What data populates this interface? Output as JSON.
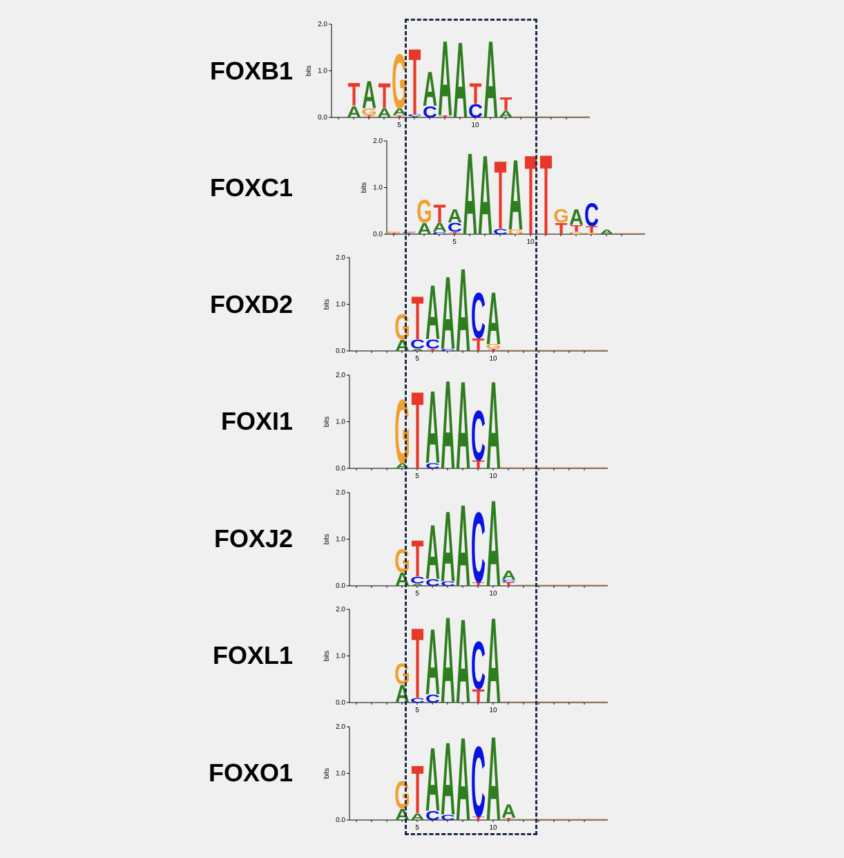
{
  "colors": {
    "A": "#2e7d1f",
    "C": "#0a14e0",
    "G": "#f0a030",
    "T": "#e8382a",
    "axis": "#000000",
    "highlight": "#1b2a44"
  },
  "axis": {
    "ylabel": "bits",
    "yticks": [
      "0.0",
      "1.0",
      "2.0"
    ],
    "xticks": [
      "5",
      "10"
    ]
  },
  "logos": [
    {
      "name": "FOXB1",
      "first_pos": 2,
      "columns": [
        {
          "pos": 2,
          "letters": [
            [
              "A",
              0.25
            ],
            [
              "T",
              0.5
            ]
          ]
        },
        {
          "pos": 3,
          "letters": [
            [
              "T",
              0.05
            ],
            [
              "G",
              0.15
            ],
            [
              "A",
              0.6
            ]
          ]
        },
        {
          "pos": 4,
          "letters": [
            [
              "A",
              0.2
            ],
            [
              "T",
              0.55
            ]
          ]
        },
        {
          "pos": 5,
          "letters": [
            [
              "T",
              0.05
            ],
            [
              "A",
              0.15
            ],
            [
              "G",
              1.2
            ]
          ]
        },
        {
          "pos": 6,
          "letters": [
            [
              "A",
              0.02
            ],
            [
              "C",
              0.05
            ],
            [
              "T",
              1.45
            ]
          ]
        },
        {
          "pos": 7,
          "letters": [
            [
              "C",
              0.25
            ],
            [
              "A",
              0.75
            ]
          ]
        },
        {
          "pos": 8,
          "letters": [
            [
              "T",
              0.05
            ],
            [
              "A",
              1.65
            ]
          ]
        },
        {
          "pos": 9,
          "letters": [
            [
              "A",
              1.67
            ]
          ]
        },
        {
          "pos": 10,
          "letters": [
            [
              "C",
              0.3
            ],
            [
              "T",
              0.45
            ]
          ]
        },
        {
          "pos": 11,
          "letters": [
            [
              "A",
              1.7
            ]
          ]
        },
        {
          "pos": 12,
          "letters": [
            [
              "A",
              0.15
            ],
            [
              "T",
              0.3
            ]
          ]
        }
      ]
    },
    {
      "name": "FOXC1",
      "first_pos": 1,
      "columns": [
        {
          "pos": 1,
          "letters": [
            [
              "T",
              0.03
            ],
            [
              "G",
              0.03
            ]
          ]
        },
        {
          "pos": 2,
          "letters": [
            [
              "T",
              0.03
            ],
            [
              "C",
              0.02
            ]
          ]
        },
        {
          "pos": 3,
          "letters": [
            [
              "A",
              0.25
            ],
            [
              "G",
              0.5
            ]
          ]
        },
        {
          "pos": 4,
          "letters": [
            [
              "C",
              0.05
            ],
            [
              "A",
              0.2
            ],
            [
              "T",
              0.4
            ]
          ]
        },
        {
          "pos": 5,
          "letters": [
            [
              "T",
              0.05
            ],
            [
              "C",
              0.2
            ],
            [
              "A",
              0.3
            ]
          ]
        },
        {
          "pos": 6,
          "letters": [
            [
              "A",
              1.8
            ]
          ]
        },
        {
          "pos": 7,
          "letters": [
            [
              "A",
              1.75
            ]
          ]
        },
        {
          "pos": 8,
          "letters": [
            [
              "C",
              0.12
            ],
            [
              "T",
              1.5
            ]
          ]
        },
        {
          "pos": 9,
          "letters": [
            [
              "G",
              0.1
            ],
            [
              "A",
              1.55
            ]
          ]
        },
        {
          "pos": 10,
          "letters": [
            [
              "T",
              1.75
            ]
          ]
        },
        {
          "pos": 11,
          "letters": [
            [
              "T",
              1.76
            ]
          ]
        },
        {
          "pos": 12,
          "letters": [
            [
              "T",
              0.25
            ],
            [
              "G",
              0.3
            ]
          ]
        },
        {
          "pos": 13,
          "letters": [
            [
              "G",
              0.05
            ],
            [
              "T",
              0.15
            ],
            [
              "A",
              0.35
            ]
          ]
        },
        {
          "pos": 14,
          "letters": [
            [
              "G",
              0.03
            ],
            [
              "T",
              0.15
            ],
            [
              "C",
              0.5
            ]
          ]
        },
        {
          "pos": 15,
          "letters": [
            [
              "A",
              0.1
            ]
          ]
        }
      ]
    },
    {
      "name": "FOXD2",
      "first_pos": 4,
      "columns": [
        {
          "pos": 4,
          "letters": [
            [
              "A",
              0.25
            ],
            [
              "G",
              0.55
            ]
          ]
        },
        {
          "pos": 5,
          "letters": [
            [
              "A",
              0.05
            ],
            [
              "C",
              0.2
            ],
            [
              "T",
              0.95
            ]
          ]
        },
        {
          "pos": 6,
          "letters": [
            [
              "T",
              0.05
            ],
            [
              "C",
              0.2
            ],
            [
              "A",
              1.2
            ]
          ]
        },
        {
          "pos": 7,
          "letters": [
            [
              "C",
              0.05
            ],
            [
              "A",
              1.6
            ]
          ]
        },
        {
          "pos": 8,
          "letters": [
            [
              "A",
              1.83
            ]
          ]
        },
        {
          "pos": 9,
          "letters": [
            [
              "T",
              0.28
            ],
            [
              "C",
              1.0
            ]
          ]
        },
        {
          "pos": 10,
          "letters": [
            [
              "T",
              0.05
            ],
            [
              "G",
              0.1
            ],
            [
              "A",
              1.15
            ]
          ]
        }
      ]
    },
    {
      "name": "FOXI1",
      "first_pos": 4,
      "columns": [
        {
          "pos": 4,
          "letters": [
            [
              "A",
              0.12
            ],
            [
              "G",
              1.4
            ]
          ]
        },
        {
          "pos": 5,
          "letters": [
            [
              "T",
              1.7
            ]
          ]
        },
        {
          "pos": 6,
          "letters": [
            [
              "C",
              0.12
            ],
            [
              "A",
              1.6
            ]
          ]
        },
        {
          "pos": 7,
          "letters": [
            [
              "A",
              1.95
            ]
          ]
        },
        {
          "pos": 8,
          "letters": [
            [
              "A",
              1.93
            ]
          ]
        },
        {
          "pos": 9,
          "letters": [
            [
              "T",
              0.18
            ],
            [
              "C",
              1.1
            ]
          ]
        },
        {
          "pos": 10,
          "letters": [
            [
              "A",
              1.93
            ]
          ]
        }
      ]
    },
    {
      "name": "FOXJ2",
      "first_pos": 4,
      "columns": [
        {
          "pos": 4,
          "letters": [
            [
              "A",
              0.3
            ],
            [
              "G",
              0.5
            ]
          ]
        },
        {
          "pos": 5,
          "letters": [
            [
              "A",
              0.05
            ],
            [
              "C",
              0.15
            ],
            [
              "T",
              0.8
            ]
          ]
        },
        {
          "pos": 6,
          "letters": [
            [
              "C",
              0.15
            ],
            [
              "A",
              1.2
            ]
          ]
        },
        {
          "pos": 7,
          "letters": [
            [
              "C",
              0.1
            ],
            [
              "A",
              1.55
            ]
          ]
        },
        {
          "pos": 8,
          "letters": [
            [
              "A",
              1.8
            ]
          ]
        },
        {
          "pos": 9,
          "letters": [
            [
              "T",
              0.08
            ],
            [
              "C",
              1.55
            ]
          ]
        },
        {
          "pos": 10,
          "letters": [
            [
              "A",
              1.9
            ]
          ]
        },
        {
          "pos": 11,
          "letters": [
            [
              "T",
              0.08
            ],
            [
              "C",
              0.05
            ],
            [
              "A",
              0.2
            ]
          ]
        }
      ]
    },
    {
      "name": "FOXL1",
      "first_pos": 4,
      "columns": [
        {
          "pos": 4,
          "letters": [
            [
              "A",
              0.4
            ],
            [
              "G",
              0.45
            ]
          ]
        },
        {
          "pos": 5,
          "letters": [
            [
              "C",
              0.1
            ],
            [
              "T",
              1.55
            ]
          ]
        },
        {
          "pos": 6,
          "letters": [
            [
              "C",
              0.18
            ],
            [
              "A",
              1.45
            ]
          ]
        },
        {
          "pos": 7,
          "letters": [
            [
              "A",
              1.9
            ]
          ]
        },
        {
          "pos": 8,
          "letters": [
            [
              "A",
              1.85
            ]
          ]
        },
        {
          "pos": 9,
          "letters": [
            [
              "T",
              0.3
            ],
            [
              "C",
              1.05
            ]
          ]
        },
        {
          "pos": 10,
          "letters": [
            [
              "A",
              1.88
            ]
          ]
        }
      ]
    },
    {
      "name": "FOXO1",
      "first_pos": 4,
      "columns": [
        {
          "pos": 4,
          "letters": [
            [
              "A",
              0.25
            ],
            [
              "G",
              0.6
            ]
          ]
        },
        {
          "pos": 5,
          "letters": [
            [
              "A",
              0.15
            ],
            [
              "T",
              1.05
            ]
          ]
        },
        {
          "pos": 6,
          "letters": [
            [
              "C",
              0.2
            ],
            [
              "A",
              1.4
            ]
          ]
        },
        {
          "pos": 7,
          "letters": [
            [
              "C",
              0.12
            ],
            [
              "A",
              1.6
            ]
          ]
        },
        {
          "pos": 8,
          "letters": [
            [
              "A",
              1.83
            ]
          ]
        },
        {
          "pos": 9,
          "letters": [
            [
              "T",
              0.08
            ],
            [
              "C",
              1.55
            ]
          ]
        },
        {
          "pos": 10,
          "letters": [
            [
              "A",
              1.85
            ]
          ]
        },
        {
          "pos": 11,
          "letters": [
            [
              "T",
              0.05
            ],
            [
              "A",
              0.3
            ]
          ]
        }
      ]
    }
  ]
}
